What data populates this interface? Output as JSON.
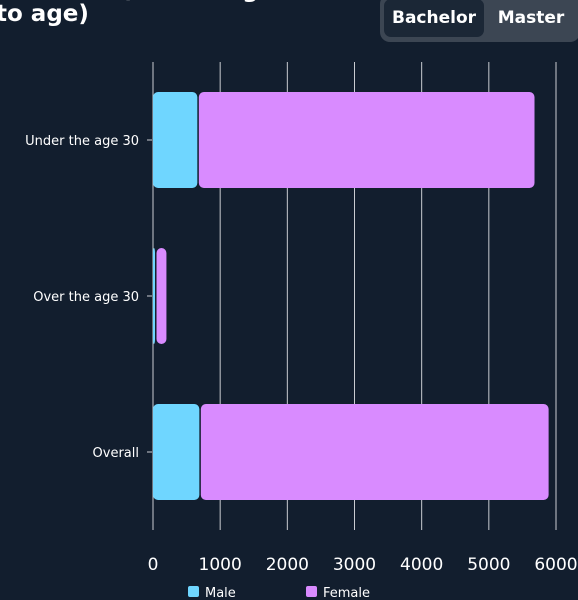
{
  "header": {
    "title": "Students (according\nto age)"
  },
  "toggle": {
    "options": [
      "Bachelor",
      "Master"
    ],
    "selected": "Bachelor"
  },
  "colors": {
    "background": "#121e2e",
    "male": "#6fd6ff",
    "female": "#d98bff",
    "grid": "#c9ccd1"
  },
  "chart_data": {
    "type": "bar",
    "orientation": "horizontal",
    "stacked": true,
    "categories": [
      "Under the age 30",
      "Over the age 30",
      "Overall"
    ],
    "series": [
      {
        "name": "Male",
        "values": [
          660,
          30,
          690
        ]
      },
      {
        "name": "Female",
        "values": [
          5020,
          170,
          5200
        ]
      }
    ],
    "xlim": [
      0,
      6000
    ],
    "xticks": [
      0,
      1000,
      2000,
      3000,
      4000,
      5000,
      6000
    ],
    "grid": true,
    "legend_position": "bottom"
  }
}
